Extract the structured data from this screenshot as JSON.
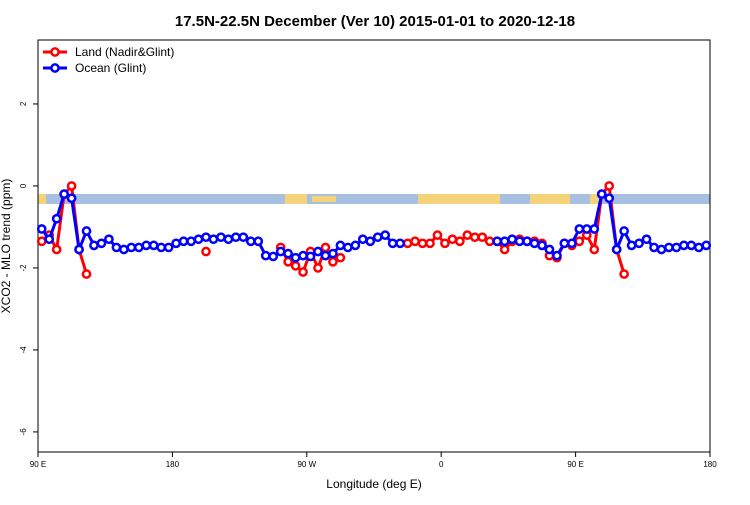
{
  "chart_data": {
    "type": "line",
    "title": "17.5N-22.5N December (Ver 10)   2015-01-01 to 2020-12-18",
    "x_label": "Longitude (deg E)",
    "y_label": "XCO2 - MLO trend (ppm)",
    "x": [
      92.5,
      97.5,
      102.5,
      107.5,
      112.5,
      117.5,
      122.5,
      127.5,
      132.5,
      137.5,
      142.5,
      147.5,
      152.5,
      157.5,
      162.5,
      167.5,
      172.5,
      177.5,
      182.5,
      187.5,
      192.5,
      197.5,
      202.5,
      207.5,
      212.5,
      217.5,
      222.5,
      227.5,
      232.5,
      237.5,
      242.5,
      247.5,
      252.5,
      257.5,
      262.5,
      267.5,
      272.5,
      277.5,
      282.5,
      287.5,
      292.5,
      297.5,
      302.5,
      307.5,
      312.5,
      317.5,
      322.5,
      327.5,
      332.5,
      337.5,
      342.5,
      347.5,
      352.5,
      357.5,
      362.5,
      367.5,
      372.5,
      377.5,
      382.5,
      387.5,
      392.5,
      397.5,
      402.5,
      407.5,
      412.5,
      417.5,
      422.5,
      427.5,
      432.5,
      437.5,
      442.5,
      447.5,
      452.5,
      457.5,
      462.5,
      467.5,
      472.5,
      477.5,
      482.5,
      487.5,
      492.5,
      497.5,
      502.5,
      507.5,
      512.5,
      517.5,
      522.5,
      527.5,
      532.5,
      537.5
    ],
    "series": [
      {
        "name": "Land (Nadir&Glint)",
        "color": "#ff0000",
        "values": [
          -1.35,
          -1.2,
          -1.55,
          -0.2,
          0.0,
          -1.55,
          -2.15,
          null,
          null,
          null,
          null,
          null,
          null,
          null,
          null,
          null,
          null,
          null,
          null,
          null,
          null,
          null,
          -1.6,
          null,
          null,
          null,
          null,
          null,
          null,
          null,
          null,
          null,
          -1.5,
          -1.85,
          -1.95,
          -2.1,
          -1.6,
          -2.0,
          -1.5,
          -1.85,
          -1.75,
          null,
          null,
          null,
          null,
          null,
          null,
          null,
          null,
          -1.4,
          -1.35,
          -1.4,
          -1.4,
          -1.2,
          -1.4,
          -1.3,
          -1.35,
          -1.2,
          -1.25,
          -1.25,
          -1.35,
          -1.35,
          -1.55,
          -1.35,
          -1.3,
          -1.35,
          -1.35,
          -1.4,
          -1.7,
          -1.75,
          -1.4,
          -1.45,
          -1.35,
          -1.2,
          -1.55,
          -0.2,
          0.0,
          -1.55,
          -2.15,
          null,
          null,
          null,
          null,
          null,
          null,
          null,
          null,
          null,
          null,
          null
        ]
      },
      {
        "name": "Ocean (Glint)",
        "color": "#0000ff",
        "values": [
          -1.05,
          -1.3,
          -0.8,
          -0.2,
          -0.3,
          -1.55,
          -1.1,
          -1.45,
          -1.4,
          -1.3,
          -1.5,
          -1.55,
          -1.5,
          -1.5,
          -1.45,
          -1.45,
          -1.5,
          -1.5,
          -1.4,
          -1.35,
          -1.35,
          -1.3,
          -1.25,
          -1.3,
          -1.25,
          -1.3,
          -1.25,
          -1.25,
          -1.35,
          -1.35,
          -1.7,
          -1.72,
          -1.6,
          -1.65,
          -1.75,
          -1.7,
          -1.72,
          -1.6,
          -1.7,
          -1.65,
          -1.45,
          -1.5,
          -1.45,
          -1.3,
          -1.35,
          -1.25,
          -1.2,
          -1.4,
          -1.4,
          null,
          null,
          null,
          null,
          null,
          null,
          null,
          null,
          null,
          null,
          null,
          null,
          -1.35,
          -1.35,
          -1.3,
          -1.35,
          -1.35,
          -1.4,
          -1.45,
          -1.55,
          -1.7,
          -1.4,
          -1.4,
          -1.05,
          -1.05,
          -1.05,
          -0.2,
          -0.3,
          -1.55,
          -1.1,
          -1.45,
          -1.4,
          -1.3,
          -1.5,
          -1.55,
          -1.5,
          -1.5,
          -1.45,
          -1.45,
          -1.5,
          -1.45
        ]
      }
    ],
    "xlim": [
      90,
      540
    ],
    "xticks": [
      {
        "value": 90,
        "label": "90 E"
      },
      180,
      {
        "value": 270,
        "label": "90 W"
      },
      {
        "value": 360,
        "label": "0"
      },
      {
        "value": 450,
        "label": "90 E"
      },
      {
        "value": 540,
        "label": "180"
      }
    ],
    "ylim": [
      -6.49,
      3.56
    ],
    "yticks": [
      -6,
      -4,
      -2,
      0,
      2
    ],
    "legend": "top-left"
  }
}
